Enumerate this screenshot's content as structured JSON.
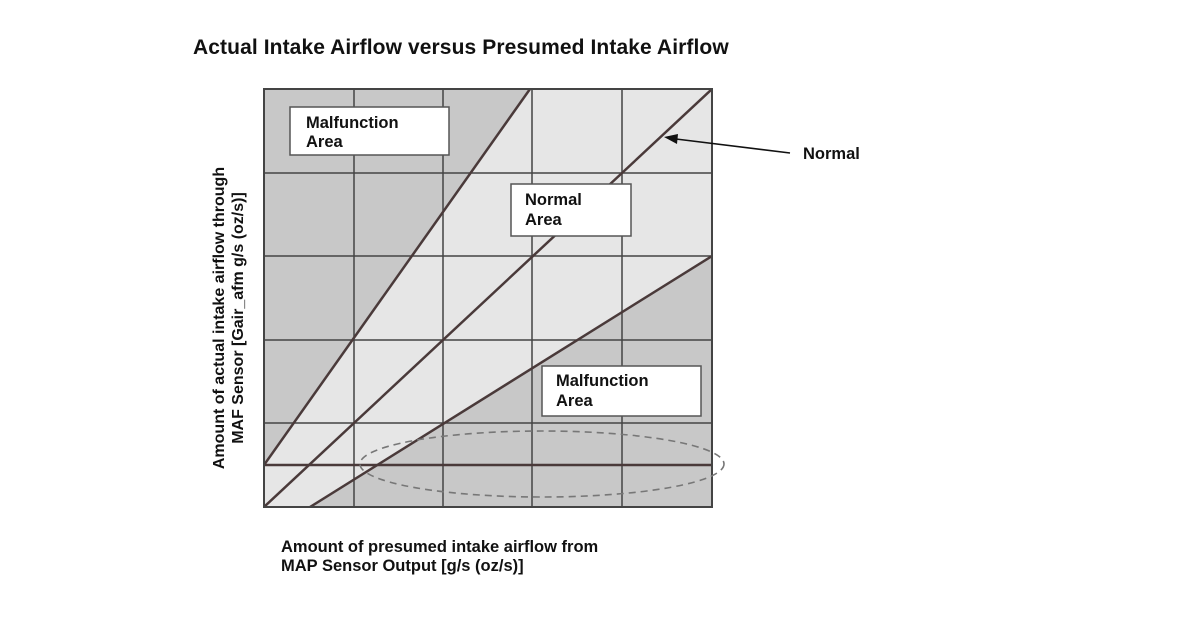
{
  "title": "Actual Intake Airflow versus Presumed Intake Airflow",
  "y_axis_label": {
    "line1": "Amount of actual intake airflow through",
    "line2": "MAF Sensor [Gair_afm g/s (oz/s)]"
  },
  "x_axis_label": {
    "line1": "Amount of presumed intake airflow from",
    "line2": "MAP Sensor Output [g/s (oz/s)]"
  },
  "regions": {
    "malfunction_upper": {
      "line1": "Malfunction",
      "line2": "Area"
    },
    "normal": {
      "line1": "Normal",
      "line2": "Area"
    },
    "malfunction_lower": {
      "line1": "Malfunction",
      "line2": "Area"
    }
  },
  "callout": "Normal",
  "colors": {
    "malfunction_fill": "#c8c8c8",
    "normal_fill": "#e6e6e6",
    "line": "#4a3a3a",
    "grid": "#444444"
  }
}
